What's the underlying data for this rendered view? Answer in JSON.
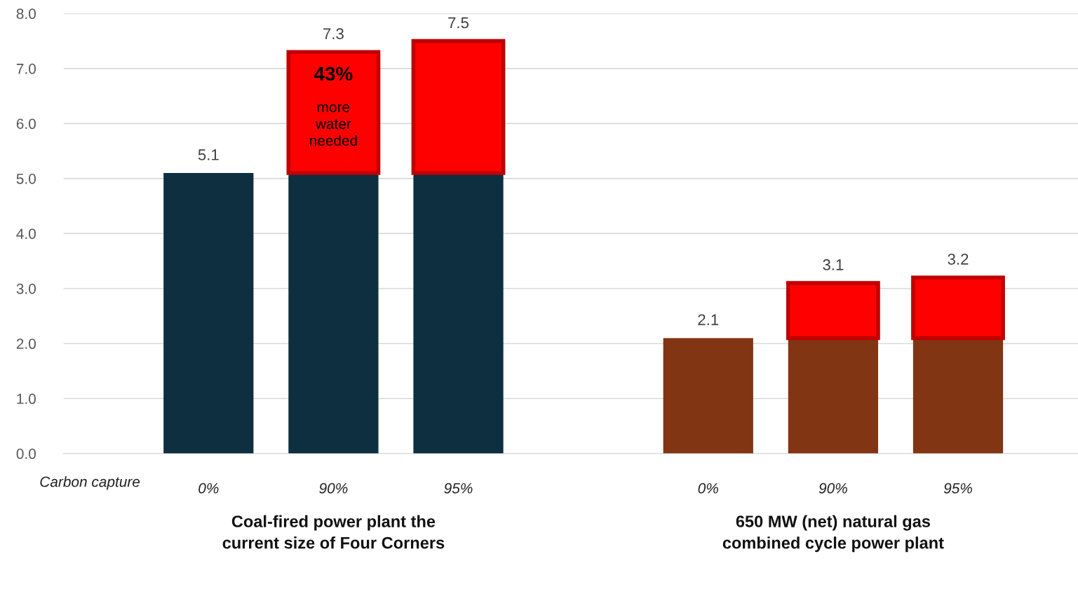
{
  "chart_data": {
    "type": "bar",
    "stacked": true,
    "categories": [
      "0%",
      "90%",
      "95%",
      null,
      "0%",
      "90%",
      "95%"
    ],
    "xlabel": "Carbon capture",
    "series": [
      {
        "colors": [
          "#0d2f40",
          "#0d2f40",
          "#0d2f40",
          null,
          "#823512",
          "#823512",
          "#823512"
        ],
        "values": [
          5.1,
          5.1,
          5.1,
          null,
          2.1,
          2.1,
          2.1
        ]
      },
      {
        "color": "#ff0000",
        "values": [
          null,
          2.2,
          2.4,
          null,
          null,
          1.0,
          1.1
        ]
      }
    ],
    "totals": [
      "5.1",
      "7.3",
      "7.5",
      null,
      "2.1",
      "3.1",
      "3.2"
    ],
    "ylim": [
      0,
      8
    ],
    "yticks": [
      {
        "value": 0,
        "label": "0.0"
      },
      {
        "value": 1,
        "label": "1.0"
      },
      {
        "value": 2,
        "label": "2.0"
      },
      {
        "value": 3,
        "label": "3.0"
      },
      {
        "value": 4,
        "label": "4.0"
      },
      {
        "value": 5,
        "label": "5.0"
      },
      {
        "value": 6,
        "label": "6.0"
      },
      {
        "value": 7,
        "label": "7.0"
      },
      {
        "value": 8,
        "label": "8.0"
      }
    ],
    "grid": "y",
    "annotations": [
      "43%",
      "more\nwater\nneeded",
      "Coal-fired power plant the\ncurrent size of Four Corners",
      "650 MW (net) natural gas\ncombined cycle power plant"
    ]
  }
}
